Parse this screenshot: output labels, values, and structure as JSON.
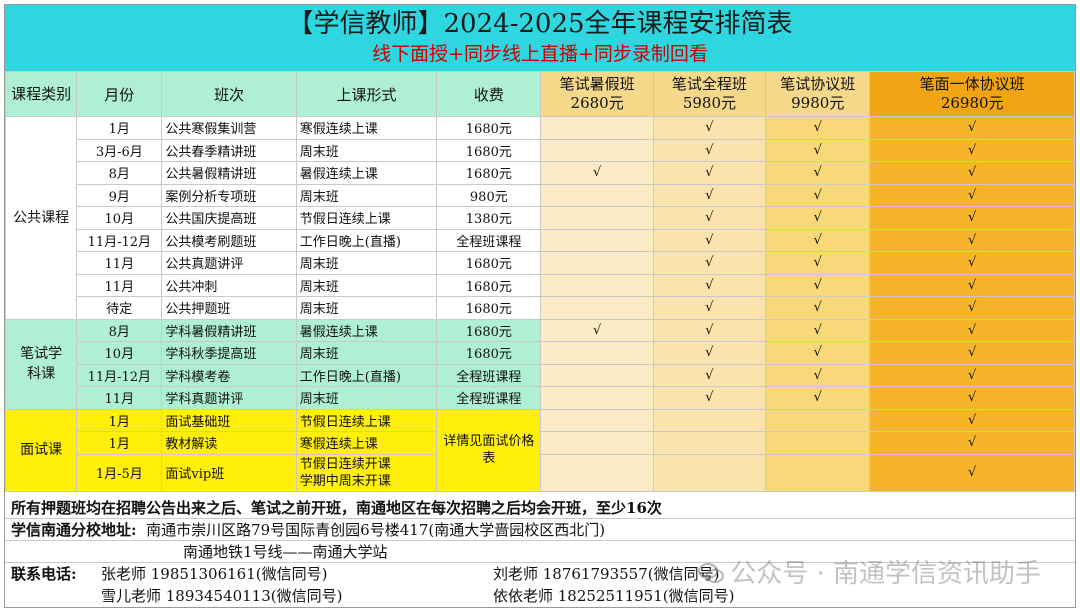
{
  "title": "【学信教师】2024-2025全年课程安排简表",
  "subtitle": "线下面授+同步线上直播+同步录制回看",
  "headers": {
    "category": "课程类别",
    "month": "月份",
    "class_name": "班次",
    "format": "上课形式",
    "fee": "收费"
  },
  "packages": [
    {
      "name": "笔试暑假班",
      "price": "2680元"
    },
    {
      "name": "笔试全程班",
      "price": "5980元"
    },
    {
      "name": "笔试协议班",
      "price": "9980元"
    },
    {
      "name": "笔面一体协议班",
      "price": "26980元"
    }
  ],
  "groups": {
    "public": "公共课程",
    "subject": "笔试学科课",
    "interview": "面试课"
  },
  "check": "√",
  "rows": [
    {
      "month": "1月",
      "class_name": "公共寒假集训营",
      "format": "寒假连续上课",
      "fee": "1680元",
      "checks": [
        "",
        "√",
        "√",
        "√"
      ]
    },
    {
      "month": "3月-6月",
      "class_name": "公共春季精讲班",
      "format": "周末班",
      "fee": "1680元",
      "checks": [
        "",
        "√",
        "√",
        "√"
      ]
    },
    {
      "month": "8月",
      "class_name": "公共暑假精讲班",
      "format": "暑假连续上课",
      "fee": "1680元",
      "checks": [
        "√",
        "√",
        "√",
        "√"
      ]
    },
    {
      "month": "9月",
      "class_name": "案例分析专项班",
      "format": "周末班",
      "fee": "980元",
      "checks": [
        "",
        "√",
        "√",
        "√"
      ]
    },
    {
      "month": "10月",
      "class_name": "公共国庆提高班",
      "format": "节假日连续上课",
      "fee": "1380元",
      "checks": [
        "",
        "√",
        "√",
        "√"
      ]
    },
    {
      "month": "11月-12月",
      "class_name": "公共模考刷题班",
      "format": "工作日晚上(直播)",
      "fee": "全程班课程",
      "checks": [
        "",
        "√",
        "√",
        "√"
      ]
    },
    {
      "month": "11月",
      "class_name": "公共真题讲评",
      "format": "周末班",
      "fee": "1680元",
      "checks": [
        "",
        "√",
        "√",
        "√"
      ]
    },
    {
      "month": "11月",
      "class_name": "公共冲刺",
      "format": "周末班",
      "fee": "1680元",
      "checks": [
        "",
        "√",
        "√",
        "√"
      ]
    },
    {
      "month": "待定",
      "class_name": "公共押题班",
      "format": "周末班",
      "fee": "1680元",
      "checks": [
        "",
        "√",
        "√",
        "√"
      ]
    },
    {
      "month": "8月",
      "class_name": "学科暑假精讲班",
      "format": "暑假连续上课",
      "fee": "1680元",
      "checks": [
        "√",
        "√",
        "√",
        "√"
      ]
    },
    {
      "month": "10月",
      "class_name": "学科秋季提高班",
      "format": "周末班",
      "fee": "1680元",
      "checks": [
        "",
        "√",
        "√",
        "√"
      ]
    },
    {
      "month": "11月-12月",
      "class_name": "学科模考卷",
      "format": "工作日晚上(直播)",
      "fee": "全程班课程",
      "checks": [
        "",
        "√",
        "√",
        "√"
      ]
    },
    {
      "month": "11月",
      "class_name": "学科真题讲评",
      "format": "周末班",
      "fee": "全程班课程",
      "checks": [
        "",
        "√",
        "√",
        "√"
      ]
    },
    {
      "month": "1月",
      "class_name": "面试基础班",
      "format": "节假日连续上课",
      "checks": [
        "",
        "",
        "",
        "√"
      ]
    },
    {
      "month": "1月",
      "class_name": "教材解读",
      "format": "寒假连续上课",
      "checks": [
        "",
        "",
        "",
        "√"
      ]
    },
    {
      "month": "1月-5月",
      "class_name": "面试vip班",
      "format_lines": [
        "节假日连续开课",
        "学期中周末开课"
      ],
      "checks": [
        "",
        "",
        "",
        "√"
      ]
    }
  ],
  "interview_fee": "详情见面试价格表",
  "notes": {
    "line1": "所有押题班均在招聘公告出来之后、笔试之前开班，南通地区在每次招聘之后均会开班，至少16次",
    "address_label": "学信南通分校地址:",
    "address": "南通市崇川区路79号国际青创园6号楼417(南通大学啬园校区西北门)",
    "metro": "南通地铁1号线——南通大学站",
    "contact_label": "联系电话:",
    "contacts": [
      "张老师 19851306161(微信同号)",
      "刘老师 18761793557(微信同号)",
      "雪儿老师 18934540113(微信同号)",
      "依依老师 18252511951(微信同号)"
    ]
  },
  "watermark": "公众号 · 南通学信资讯助手"
}
